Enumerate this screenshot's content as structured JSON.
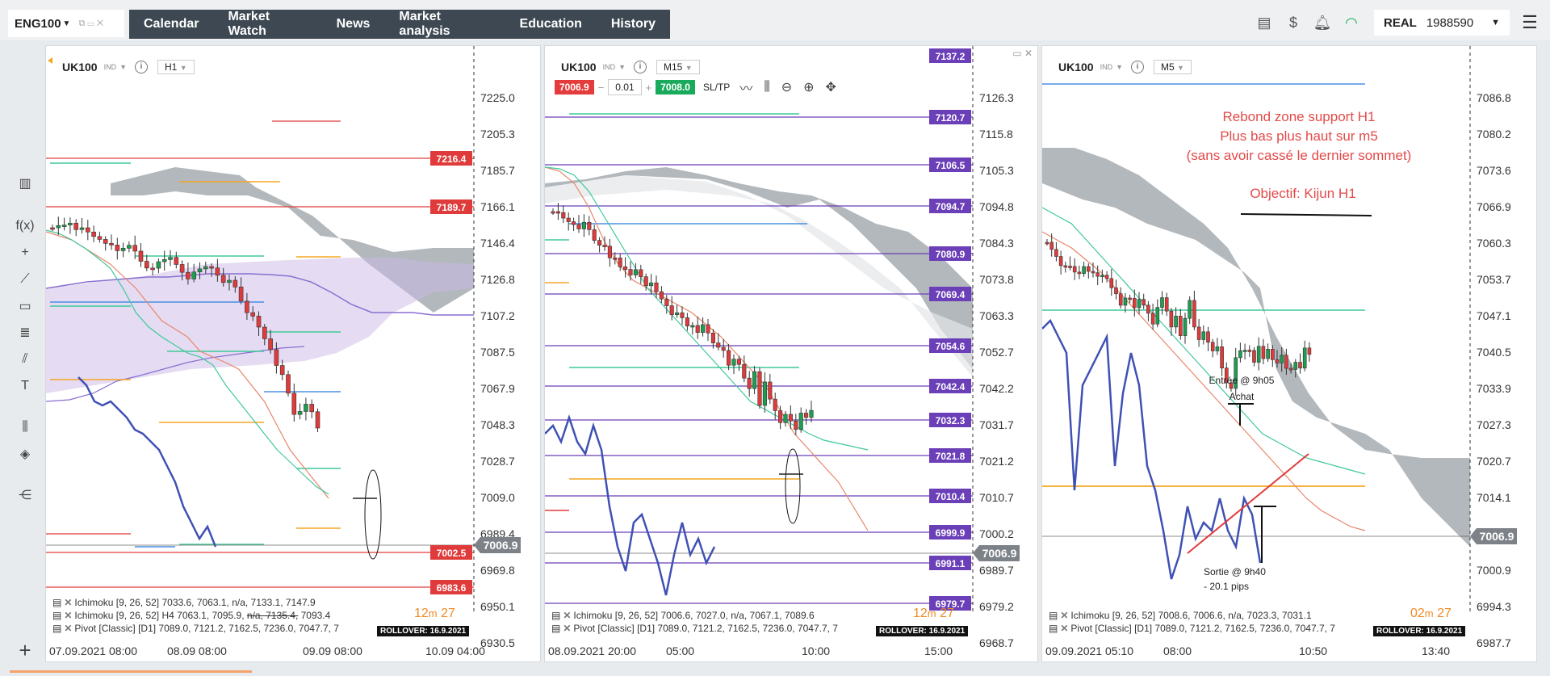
{
  "account_tab": {
    "label": "ENG100"
  },
  "nav": [
    "Calendar",
    "Market Watch",
    "News",
    "Market analysis",
    "Education",
    "History"
  ],
  "account": {
    "mode": "REAL",
    "number": "1988590"
  },
  "icons": {
    "layout": "layout-icon",
    "deposit": "dollar-transfer-icon",
    "bell": "bell-icon",
    "wifi": "wifi-icon",
    "menu": "hamburger-icon"
  },
  "colors": {
    "bull": "#1e9e4f",
    "bear": "#e03b3b",
    "kijun": "#e8866a",
    "tenkan": "#3ec99a",
    "cloud": "#9aa0a6",
    "pivot": "#6a3fb7",
    "level": "#e03b3b",
    "orange": "#f5a623",
    "blue": "#4b90e2",
    "overlay": "#3f51b5"
  },
  "panels": [
    {
      "symbol": "UK100",
      "asset_class": "IND",
      "timeframe": "H1",
      "price_min": 6930.5,
      "price_max": 7225.0,
      "y_ticks": [
        "7225.0",
        "7205.3",
        "7185.7",
        "7166.1",
        "7146.4",
        "7126.8",
        "7107.2",
        "7087.5",
        "7067.9",
        "7048.3",
        "7028.7",
        "7009.0",
        "6989.4",
        "6969.8",
        "6950.1",
        "6930.5"
      ],
      "x_ticks": [
        "07.09.2021 08:00",
        "08.09 08:00",
        "09.09 08:00",
        "10.09 04:00"
      ],
      "current_price": "7006.9",
      "level_labels": [
        {
          "v": 7216.4,
          "t": "7216.4"
        },
        {
          "v": 7189.7,
          "t": "7189.7"
        },
        {
          "v": 7002.5,
          "t": "7002.5"
        },
        {
          "v": 6983.6,
          "t": "6983.6"
        }
      ],
      "indicators": [
        {
          "pre": "Ichimoku [9, 26, 52] 7033.6, 7063.1, n/a, 7133.1, 7147.9"
        },
        {
          "pre": "Ichimoku [9, 26, 52] H4 7063.1, 7095.9, ",
          "strike": "n/a, 7135.4,",
          "post": " 7093.4"
        },
        {
          "pre": "Pivot [Classic] [D1] 7089.0, 7121.2, 7162.5, 7236.0, 7047.7, 7"
        }
      ],
      "timer": {
        "m": "12",
        "s": "27"
      },
      "rollover": "ROLLOVER: 16.9.2021"
    },
    {
      "symbol": "UK100",
      "asset_class": "IND",
      "timeframe": "M15",
      "sell_price": "7006.9",
      "qty": "0.01",
      "buy_price": "7008.0",
      "sltp_label": "SL/TP",
      "price_min": 6968.7,
      "price_max": 7126.3,
      "y_ticks": [
        "7126.3",
        "7115.8",
        "7105.3",
        "7094.8",
        "7084.3",
        "7073.8",
        "7063.3",
        "7052.7",
        "7042.2",
        "7031.7",
        "7021.2",
        "7010.7",
        "7000.2",
        "6989.7",
        "6979.2",
        "6968.7"
      ],
      "x_ticks": [
        "08.09.2021 20:00",
        "05:00",
        "10:00",
        "15:00"
      ],
      "current_price": "7006.9",
      "level_labels": [
        {
          "v": 7137.2,
          "t": "7137.2"
        },
        {
          "v": 7120.7,
          "t": "7120.7"
        },
        {
          "v": 7106.5,
          "t": "7106.5"
        },
        {
          "v": 7094.7,
          "t": "7094.7"
        },
        {
          "v": 7080.9,
          "t": "7080.9"
        },
        {
          "v": 7069.4,
          "t": "7069.4"
        },
        {
          "v": 7054.6,
          "t": "7054.6"
        },
        {
          "v": 7042.4,
          "t": "7042.4"
        },
        {
          "v": 7032.3,
          "t": "7032.3"
        },
        {
          "v": 7021.8,
          "t": "7021.8"
        },
        {
          "v": 7010.4,
          "t": "7010.4"
        },
        {
          "v": 6999.9,
          "t": "6999.9"
        },
        {
          "v": 6991.1,
          "t": "6991.1"
        },
        {
          "v": 6979.7,
          "t": "6979.7"
        }
      ],
      "indicators": [
        {
          "pre": "Ichimoku [9, 26, 52] 7006.6, 7027.0, n/a, 7067.1, 7089.6"
        },
        {
          "pre": "Pivot [Classic] [D1] 7089.0, 7121.2, 7162.5, 7236.0, 7047.7, 7"
        }
      ],
      "timer": {
        "m": "12",
        "s": "27"
      },
      "rollover": "ROLLOVER: 16.9.2021"
    },
    {
      "symbol": "UK100",
      "asset_class": "IND",
      "timeframe": "M5",
      "price_min": 6987.7,
      "price_max": 7086.8,
      "y_ticks": [
        "7086.8",
        "7080.2",
        "7073.6",
        "7066.9",
        "7060.3",
        "7053.7",
        "7047.1",
        "7040.5",
        "7033.9",
        "7027.3",
        "7020.7",
        "7014.1",
        "7007.5",
        "7000.9",
        "6994.3",
        "6987.7"
      ],
      "x_ticks": [
        "09.09.2021 05:10",
        "08:00",
        "10:50",
        "13:40"
      ],
      "current_price": "7006.9",
      "indicators": [
        {
          "pre": "Ichimoku [9, 26, 52] 7008.6, 7006.6, n/a, 7023.3, 7031.1"
        },
        {
          "pre": "Pivot [Classic] [D1] 7089.0, 7121.2, 7162.5, 7236.0, 7047.7, 7"
        }
      ],
      "timer": {
        "m": "02",
        "s": "27"
      },
      "rollover": "ROLLOVER: 16.9.2021",
      "note_lines": [
        "Rebond zone support H1",
        "Plus bas plus haut sur m5",
        "(sans avoir cassé le dernier sommet)"
      ],
      "objective": "Objectif: Kijun H1",
      "entry_label": [
        "Entrée @ 9h05",
        "Achat"
      ],
      "exit_label": [
        "Sortie @ 9h40",
        "- 20.1 pips"
      ]
    }
  ]
}
